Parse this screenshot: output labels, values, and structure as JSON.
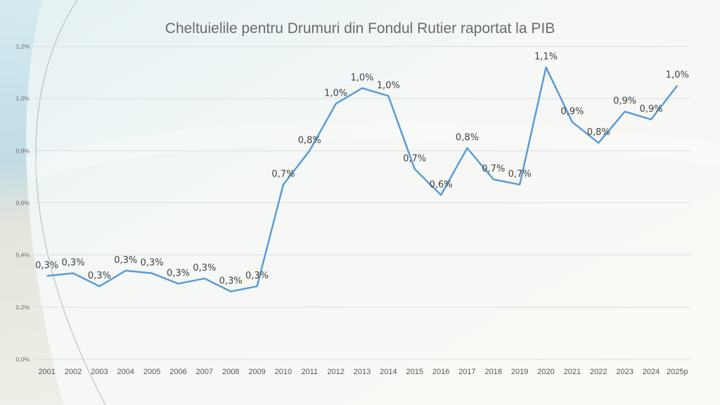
{
  "chart_data": {
    "type": "line",
    "title": "Cheltuielile pentru Drumuri din Fondul Rutier raportat la PIB",
    "xlabel": "",
    "ylabel": "",
    "categories": [
      "2001",
      "2002",
      "2003",
      "2004",
      "2005",
      "2006",
      "2007",
      "2008",
      "2009",
      "2010",
      "2011",
      "2012",
      "2013",
      "2014",
      "2015",
      "2016",
      "2017",
      "2018",
      "2019",
      "2020",
      "2021",
      "2022",
      "2023",
      "2024",
      "2025p"
    ],
    "series": [
      {
        "values": [
          0.32,
          0.33,
          0.28,
          0.34,
          0.33,
          0.29,
          0.31,
          0.26,
          0.28,
          0.67,
          0.8,
          0.98,
          1.04,
          1.01,
          0.73,
          0.63,
          0.81,
          0.69,
          0.67,
          1.12,
          0.91,
          0.83,
          0.95,
          0.92,
          1.05
        ],
        "data_labels": [
          "0,3%",
          "0,3%",
          "0,3%",
          "0,3%",
          "0,3%",
          "0,3%",
          "0,3%",
          "0,3%",
          "0,3%",
          "0,7%",
          "0,8%",
          "1,0%",
          "1,0%",
          "1,0%",
          "0,7%",
          "0,6%",
          "0,8%",
          "0,7%",
          "0,7%",
          "1,1%",
          "0,9%",
          "0,8%",
          "0,9%",
          "0,9%",
          "1,0%"
        ]
      }
    ],
    "ylim": [
      0,
      1.2
    ],
    "yticks": [
      0,
      0.2,
      0.4,
      0.6,
      0.8,
      1.0,
      1.2
    ],
    "ytick_labels": [
      "0,0%",
      "0,2%",
      "0,4%",
      "0,6%",
      "0,8%",
      "1,0%",
      "1,2%"
    ],
    "grid": true,
    "legend": "none",
    "line_color": "#5b9bd5"
  }
}
